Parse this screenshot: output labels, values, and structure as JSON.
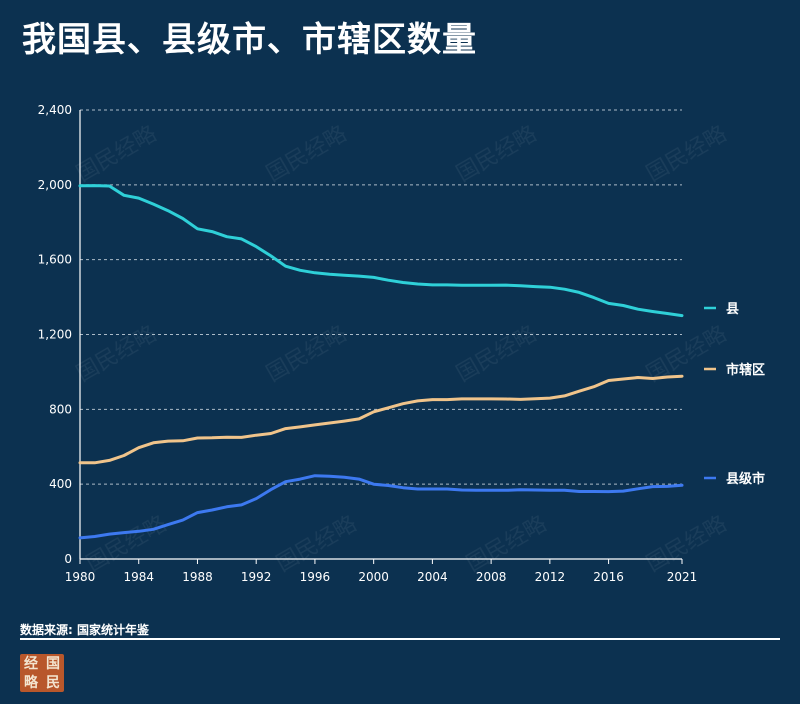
{
  "title": "我国县、县级市、市辖区数量",
  "source": "数据来源: 国家统计年鉴",
  "watermark": "国民经略",
  "logo": {
    "chars": [
      "经",
      "国",
      "略",
      "民"
    ],
    "color": "#b8572b"
  },
  "colors": {
    "background": "#0c3150",
    "county": "#2fd0d8",
    "district": "#f0c48b",
    "county_city": "#3d79f0",
    "grid": "#c9d3dd",
    "text": "#ffffff"
  },
  "chart_data": {
    "type": "line",
    "title": "我国县、县级市、市辖区数量",
    "xlabel": "",
    "ylabel": "",
    "xlim": [
      1980,
      2021
    ],
    "ylim": [
      0,
      2400
    ],
    "x_ticks": [
      "1980",
      "1984",
      "1988",
      "1992",
      "1996",
      "2000",
      "2004",
      "2008",
      "2012",
      "2016",
      "2021"
    ],
    "y_ticks": [
      "0",
      "400",
      "800",
      "1,200",
      "1,600",
      "2,000",
      "2,400"
    ],
    "grid": "horizontal dashed",
    "legend_placement": "right, at line ends",
    "x": [
      1980,
      1981,
      1982,
      1983,
      1984,
      1985,
      1986,
      1987,
      1988,
      1989,
      1990,
      1991,
      1992,
      1993,
      1994,
      1995,
      1996,
      1997,
      1998,
      1999,
      2000,
      2001,
      2002,
      2003,
      2004,
      2005,
      2006,
      2007,
      2008,
      2009,
      2010,
      2011,
      2012,
      2013,
      2014,
      2015,
      2016,
      2017,
      2018,
      2019,
      2020,
      2021
    ],
    "series": [
      {
        "name": "县",
        "color": "#2fd0d8",
        "values": [
          1995,
          1996,
          1994,
          1944,
          1929,
          1897,
          1862,
          1820,
          1765,
          1750,
          1723,
          1711,
          1670,
          1620,
          1565,
          1543,
          1530,
          1522,
          1517,
          1512,
          1505,
          1490,
          1478,
          1470,
          1465,
          1465,
          1463,
          1463,
          1463,
          1464,
          1461,
          1456,
          1453,
          1442,
          1425,
          1397,
          1366,
          1355,
          1335,
          1323,
          1312,
          1301
        ]
      },
      {
        "name": "市辖区",
        "color": "#f0c48b",
        "values": [
          515,
          514,
          527,
          553,
          595,
          621,
          630,
          632,
          647,
          648,
          651,
          650,
          662,
          671,
          697,
          706,
          717,
          727,
          737,
          749,
          787,
          808,
          830,
          845,
          852,
          852,
          856,
          856,
          856,
          855,
          853,
          857,
          860,
          872,
          897,
          921,
          954,
          962,
          970,
          965,
          973,
          977
        ]
      },
      {
        "name": "县级市",
        "color": "#3d79f0",
        "values": [
          113,
          120,
          133,
          141,
          148,
          159,
          184,
          208,
          248,
          262,
          279,
          289,
          323,
          371,
          413,
          427,
          445,
          442,
          437,
          427,
          400,
          393,
          381,
          374,
          374,
          374,
          369,
          368,
          368,
          367,
          370,
          369,
          368,
          368,
          361,
          361,
          360,
          363,
          375,
          387,
          388,
          394
        ]
      }
    ]
  }
}
